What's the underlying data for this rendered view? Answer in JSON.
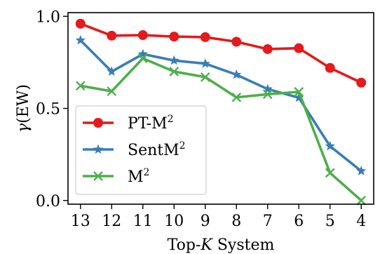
{
  "chart_data": {
    "type": "line",
    "x": [
      "13",
      "12",
      "11",
      "10",
      "9",
      "8",
      "7",
      "6",
      "5",
      "4"
    ],
    "xlabel": {
      "prefix": "Top-",
      "italic": "K",
      "suffix": " System"
    },
    "ylabel": {
      "italic": "γ",
      "suffix": "(EW)"
    },
    "ylim": [
      -0.02,
      1.02
    ],
    "yticks": [
      0.0,
      0.5,
      1.0
    ],
    "ytick_labels": [
      "0.0",
      "0.5",
      "1.0"
    ],
    "grid": false,
    "legend_position": "lower-left",
    "series": [
      {
        "name_base": "PT-M",
        "name_sup": "2",
        "color": "#e41a1c",
        "marker": "circle",
        "values": [
          0.96,
          0.895,
          0.898,
          0.89,
          0.887,
          0.862,
          0.822,
          0.827,
          0.72,
          0.64
        ]
      },
      {
        "name_base": "SentM",
        "name_sup": "2",
        "color": "#377eb8",
        "marker": "star",
        "values": [
          0.87,
          0.7,
          0.795,
          0.76,
          0.743,
          0.683,
          0.605,
          0.558,
          0.295,
          0.16
        ]
      },
      {
        "name_base": "M",
        "name_sup": "2",
        "color": "#4daf4a",
        "marker": "x",
        "values": [
          0.623,
          0.593,
          0.772,
          0.7,
          0.67,
          0.56,
          0.577,
          0.59,
          0.15,
          0.0
        ]
      }
    ]
  }
}
